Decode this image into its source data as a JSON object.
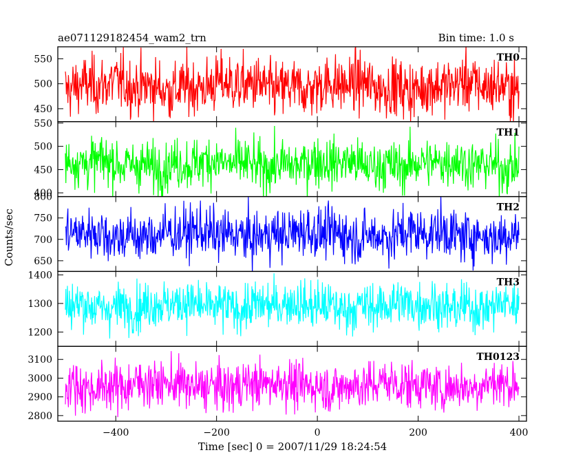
{
  "chart_data": {
    "type": "line",
    "title": "ae071129182454_wam2_trn",
    "subtitle": "Bin time: 1.0 s",
    "xlabel": "Time [sec] 0 = 2007/11/29 18:24:54",
    "ylabel": "Counts/sec",
    "xlim": [
      -515,
      415
    ],
    "x_range": [
      -500,
      400
    ],
    "x_step": 1,
    "xticks": [
      -400,
      -200,
      0,
      200,
      400
    ],
    "grid": false,
    "panels": [
      {
        "name": "TH0",
        "color": "#ff0000",
        "mean": 495,
        "spread": 38,
        "ylim": [
          424,
          574
        ],
        "yticks": [
          450,
          500,
          550
        ]
      },
      {
        "name": "TH1",
        "color": "#00ff00",
        "mean": 462,
        "spread": 36,
        "ylim": [
          392,
          553
        ],
        "yticks": [
          400,
          450,
          500,
          550
        ]
      },
      {
        "name": "TH2",
        "color": "#0000ff",
        "mean": 712,
        "spread": 40,
        "ylim": [
          625,
          800
        ],
        "yticks": [
          650,
          700,
          750,
          800
        ]
      },
      {
        "name": "TH3",
        "color": "#00ffff",
        "mean": 1292,
        "spread": 55,
        "ylim": [
          1150,
          1412
        ],
        "yticks": [
          1200,
          1300,
          1400
        ]
      },
      {
        "name": "TH0123",
        "color": "#ff00ff",
        "mean": 2962,
        "spread": 85,
        "ylim": [
          2770,
          3170
        ],
        "yticks": [
          2800,
          2900,
          3000,
          3100
        ]
      }
    ]
  }
}
